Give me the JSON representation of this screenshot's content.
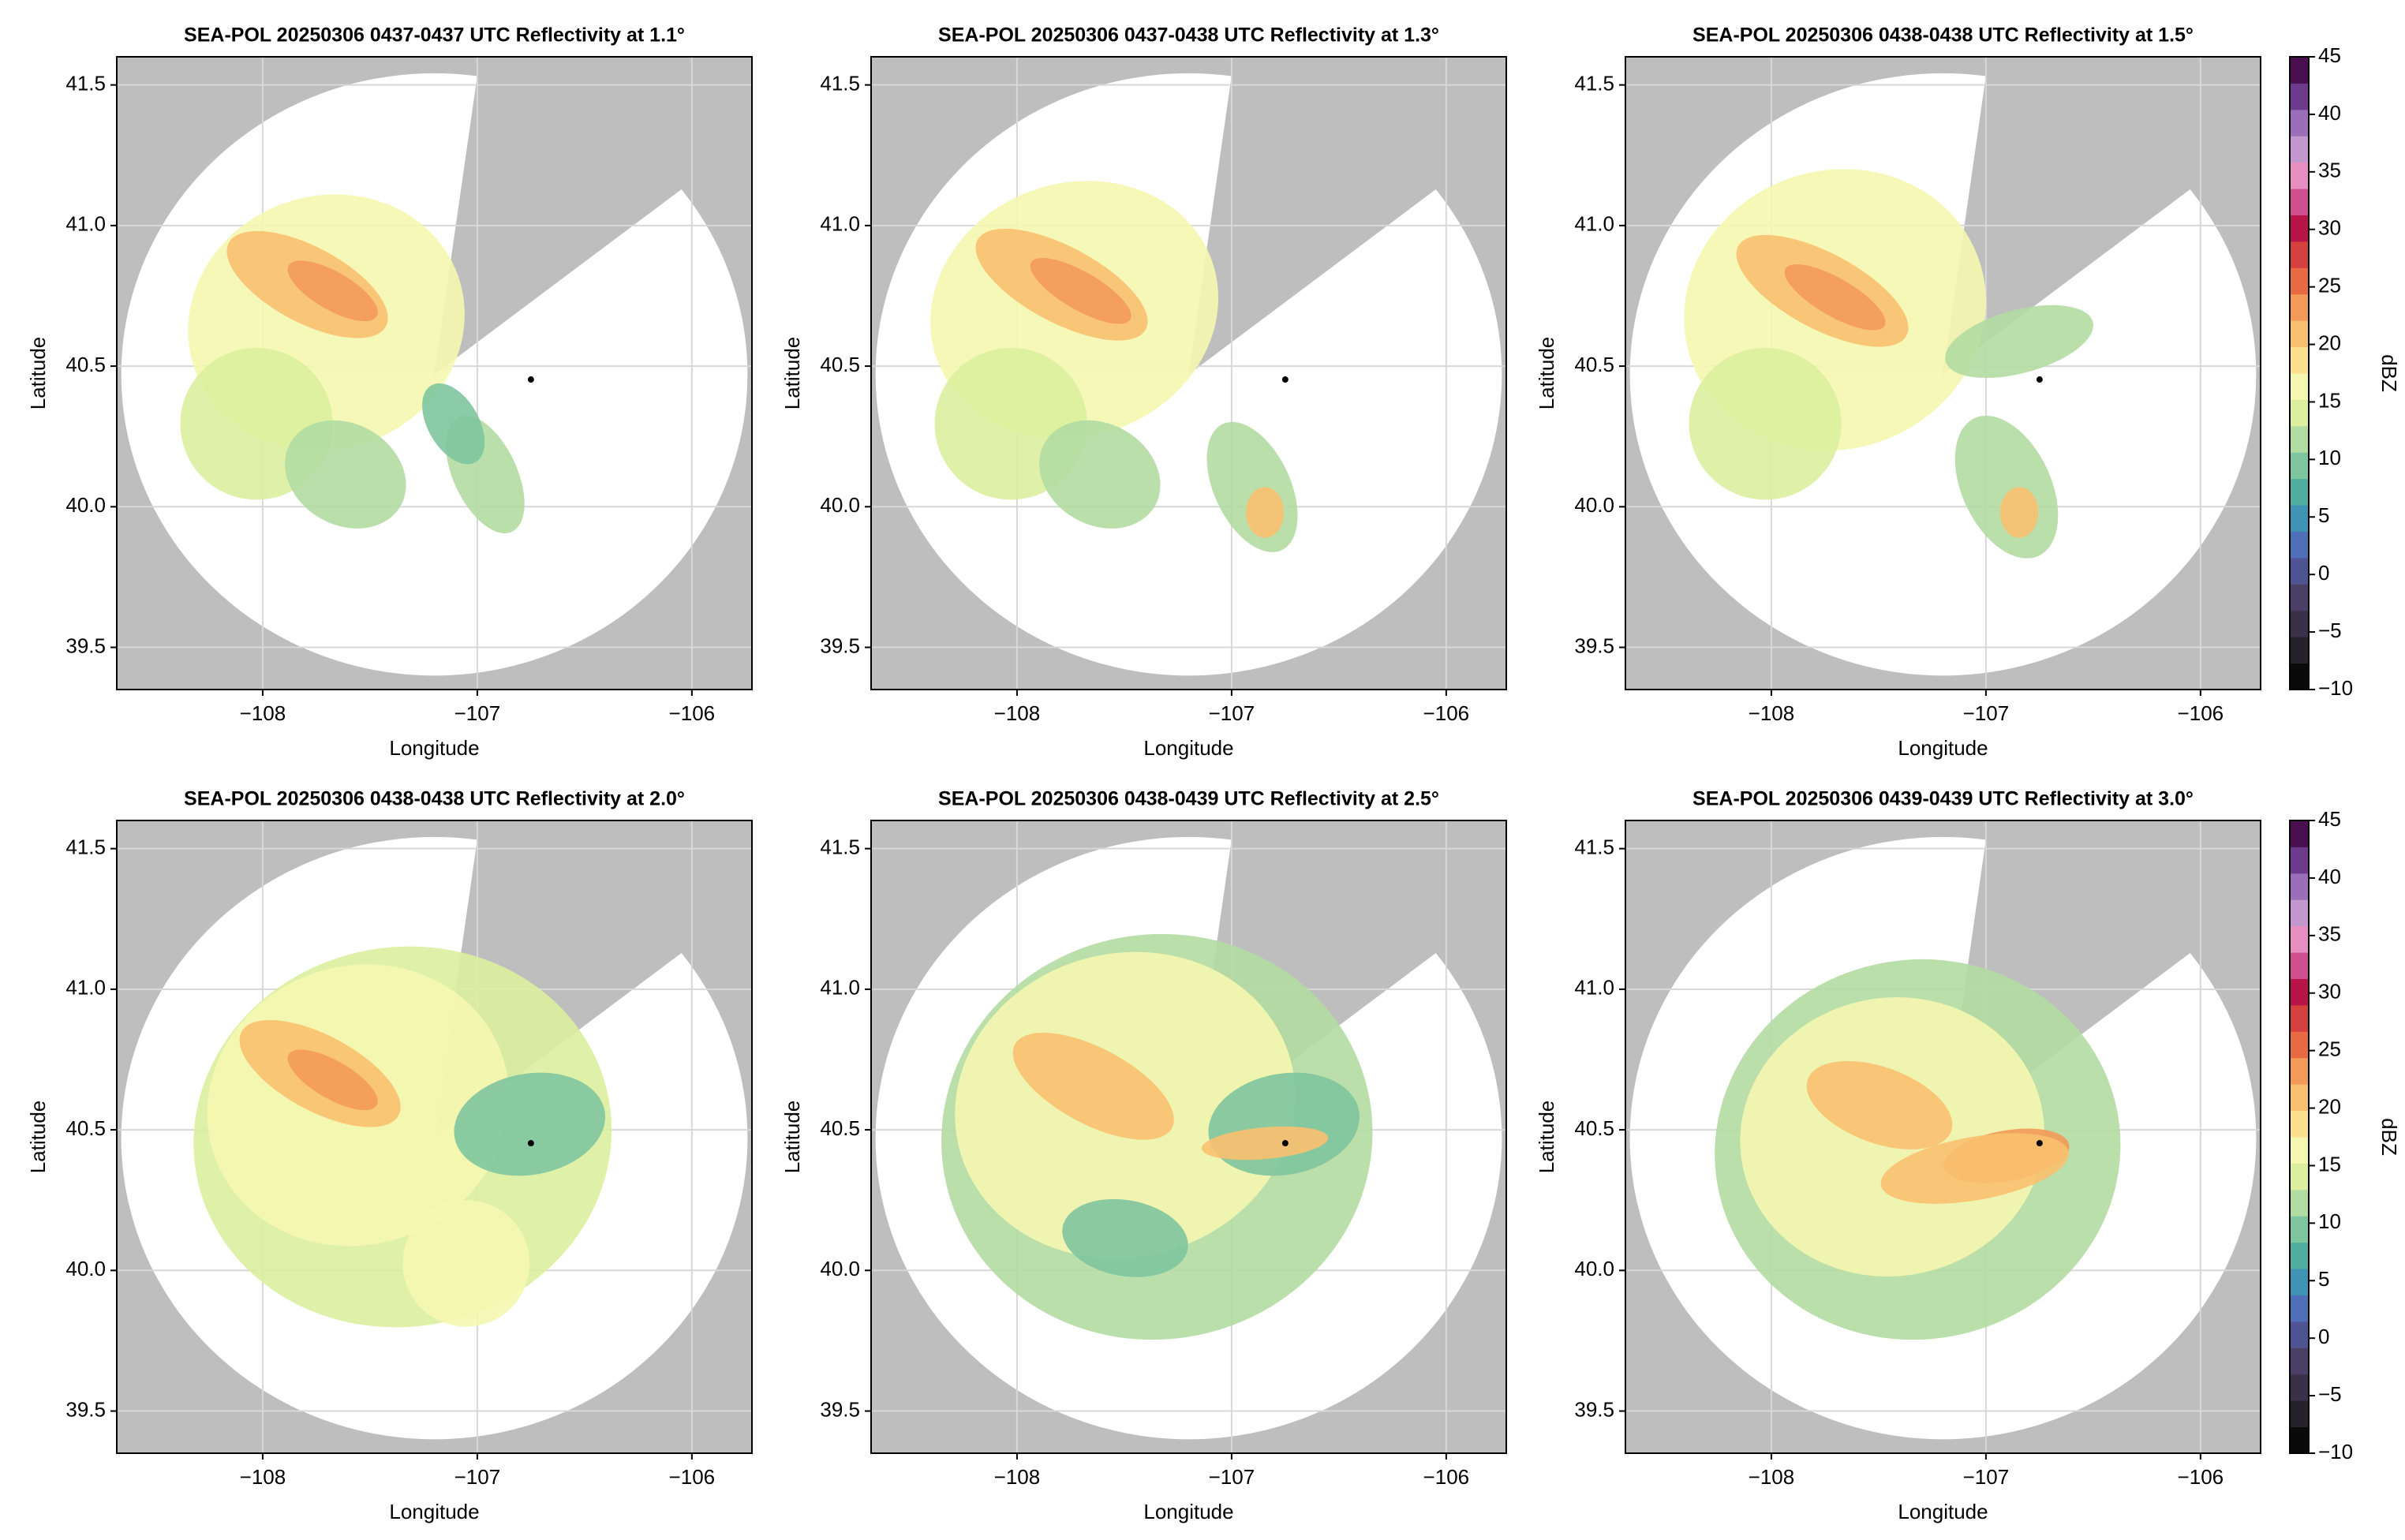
{
  "chart_data": [
    {
      "type": "radar-ppi",
      "title": "SEA-POL 20250306 0437-0437 UTC Reflectivity at 1.1°",
      "xlabel": "Longitude",
      "ylabel": "Latitude",
      "xlim": [
        -108.68,
        -105.72
      ],
      "ylim": [
        39.35,
        41.6
      ],
      "xticks": [
        {
          "value": -108,
          "label": "−108"
        },
        {
          "value": -107,
          "label": "−107"
        },
        {
          "value": -106,
          "label": "−106"
        }
      ],
      "yticks": [
        {
          "value": 39.5,
          "label": "39.5"
        },
        {
          "value": 40.0,
          "label": "40.0"
        },
        {
          "value": 40.5,
          "label": "40.5"
        },
        {
          "value": 41.0,
          "label": "41.0"
        },
        {
          "value": 41.5,
          "label": "41.5"
        }
      ],
      "grid": true
    },
    {
      "type": "radar-ppi",
      "title": "SEA-POL 20250306 0437-0438 UTC Reflectivity at 1.3°",
      "xlabel": "Longitude",
      "ylabel": "Latitude",
      "xlim": [
        -108.68,
        -105.72
      ],
      "ylim": [
        39.35,
        41.6
      ],
      "xticks": [
        {
          "value": -108,
          "label": "−108"
        },
        {
          "value": -107,
          "label": "−107"
        },
        {
          "value": -106,
          "label": "−106"
        }
      ],
      "yticks": [
        {
          "value": 39.5,
          "label": "39.5"
        },
        {
          "value": 40.0,
          "label": "40.0"
        },
        {
          "value": 40.5,
          "label": "40.5"
        },
        {
          "value": 41.0,
          "label": "41.0"
        },
        {
          "value": 41.5,
          "label": "41.5"
        }
      ],
      "grid": true
    },
    {
      "type": "radar-ppi",
      "title": "SEA-POL 20250306 0438-0438 UTC Reflectivity at 1.5°",
      "xlabel": "Longitude",
      "ylabel": "Latitude",
      "xlim": [
        -108.68,
        -105.72
      ],
      "ylim": [
        39.35,
        41.6
      ],
      "xticks": [
        {
          "value": -108,
          "label": "−108"
        },
        {
          "value": -107,
          "label": "−107"
        },
        {
          "value": -106,
          "label": "−106"
        }
      ],
      "yticks": [
        {
          "value": 39.5,
          "label": "39.5"
        },
        {
          "value": 40.0,
          "label": "40.0"
        },
        {
          "value": 40.5,
          "label": "40.5"
        },
        {
          "value": 41.0,
          "label": "41.0"
        },
        {
          "value": 41.5,
          "label": "41.5"
        }
      ],
      "grid": true,
      "colorbar": {
        "label": "dBZ",
        "lim": [
          -10,
          45
        ],
        "ticks": [
          {
            "value": -10,
            "label": "−10"
          },
          {
            "value": -5,
            "label": "−5"
          },
          0,
          5,
          10,
          15,
          20,
          25,
          30,
          35,
          40,
          45
        ],
        "colors": [
          "#0a0a0a",
          "#26222c",
          "#3a3148",
          "#4a3f66",
          "#4e5394",
          "#4f6fb8",
          "#3f93b5",
          "#4fae9f",
          "#7fc59f",
          "#b2dca2",
          "#dcef9e",
          "#f5f7b0",
          "#fbe18e",
          "#f9c070",
          "#f39a58",
          "#e86a44",
          "#d4403e",
          "#b8144a",
          "#cf4f8f",
          "#e68fc0",
          "#c497cf",
          "#9a6eb8",
          "#6e3a8e",
          "#4a0f50"
        ]
      }
    },
    {
      "type": "radar-ppi",
      "title": "SEA-POL 20250306 0438-0438 UTC Reflectivity at 2.0°",
      "xlabel": "Longitude",
      "ylabel": "Latitude",
      "xlim": [
        -108.68,
        -105.72
      ],
      "ylim": [
        39.35,
        41.6
      ],
      "xticks": [
        {
          "value": -108,
          "label": "−108"
        },
        {
          "value": -107,
          "label": "−107"
        },
        {
          "value": -106,
          "label": "−106"
        }
      ],
      "yticks": [
        {
          "value": 39.5,
          "label": "39.5"
        },
        {
          "value": 40.0,
          "label": "40.0"
        },
        {
          "value": 40.5,
          "label": "40.5"
        },
        {
          "value": 41.0,
          "label": "41.0"
        },
        {
          "value": 41.5,
          "label": "41.5"
        }
      ],
      "grid": true
    },
    {
      "type": "radar-ppi",
      "title": "SEA-POL 20250306 0438-0439 UTC Reflectivity at 2.5°",
      "xlabel": "Longitude",
      "ylabel": "Latitude",
      "xlim": [
        -108.68,
        -105.72
      ],
      "ylim": [
        39.35,
        41.6
      ],
      "xticks": [
        {
          "value": -108,
          "label": "−108"
        },
        {
          "value": -107,
          "label": "−107"
        },
        {
          "value": -106,
          "label": "−106"
        }
      ],
      "yticks": [
        {
          "value": 39.5,
          "label": "39.5"
        },
        {
          "value": 40.0,
          "label": "40.0"
        },
        {
          "value": 40.5,
          "label": "40.5"
        },
        {
          "value": 41.0,
          "label": "41.0"
        },
        {
          "value": 41.5,
          "label": "41.5"
        }
      ],
      "grid": true
    },
    {
      "type": "radar-ppi",
      "title": "SEA-POL 20250306 0439-0439 UTC Reflectivity at 3.0°",
      "xlabel": "Longitude",
      "ylabel": "Latitude",
      "xlim": [
        -108.68,
        -105.72
      ],
      "ylim": [
        39.35,
        41.6
      ],
      "xticks": [
        {
          "value": -108,
          "label": "−108"
        },
        {
          "value": -107,
          "label": "−107"
        },
        {
          "value": -106,
          "label": "−106"
        }
      ],
      "yticks": [
        {
          "value": 39.5,
          "label": "39.5"
        },
        {
          "value": 40.0,
          "label": "40.0"
        },
        {
          "value": 40.5,
          "label": "40.5"
        },
        {
          "value": 41.0,
          "label": "41.0"
        },
        {
          "value": 41.5,
          "label": "41.5"
        }
      ],
      "grid": true,
      "colorbar": {
        "label": "dBZ",
        "lim": [
          -10,
          45
        ],
        "ticks": [
          {
            "value": -10,
            "label": "−10"
          },
          {
            "value": -5,
            "label": "−5"
          },
          0,
          5,
          10,
          15,
          20,
          25,
          30,
          35,
          40,
          45
        ],
        "colors": [
          "#0a0a0a",
          "#26222c",
          "#3a3148",
          "#4a3f66",
          "#4e5394",
          "#4f6fb8",
          "#3f93b5",
          "#4fae9f",
          "#7fc59f",
          "#b2dca2",
          "#dcef9e",
          "#f5f7b0",
          "#fbe18e",
          "#f9c070",
          "#f39a58",
          "#e86a44",
          "#d4403e",
          "#b8144a",
          "#cf4f8f",
          "#e68fc0",
          "#c497cf",
          "#9a6eb8",
          "#6e3a8e",
          "#4a0f50"
        ]
      }
    }
  ]
}
